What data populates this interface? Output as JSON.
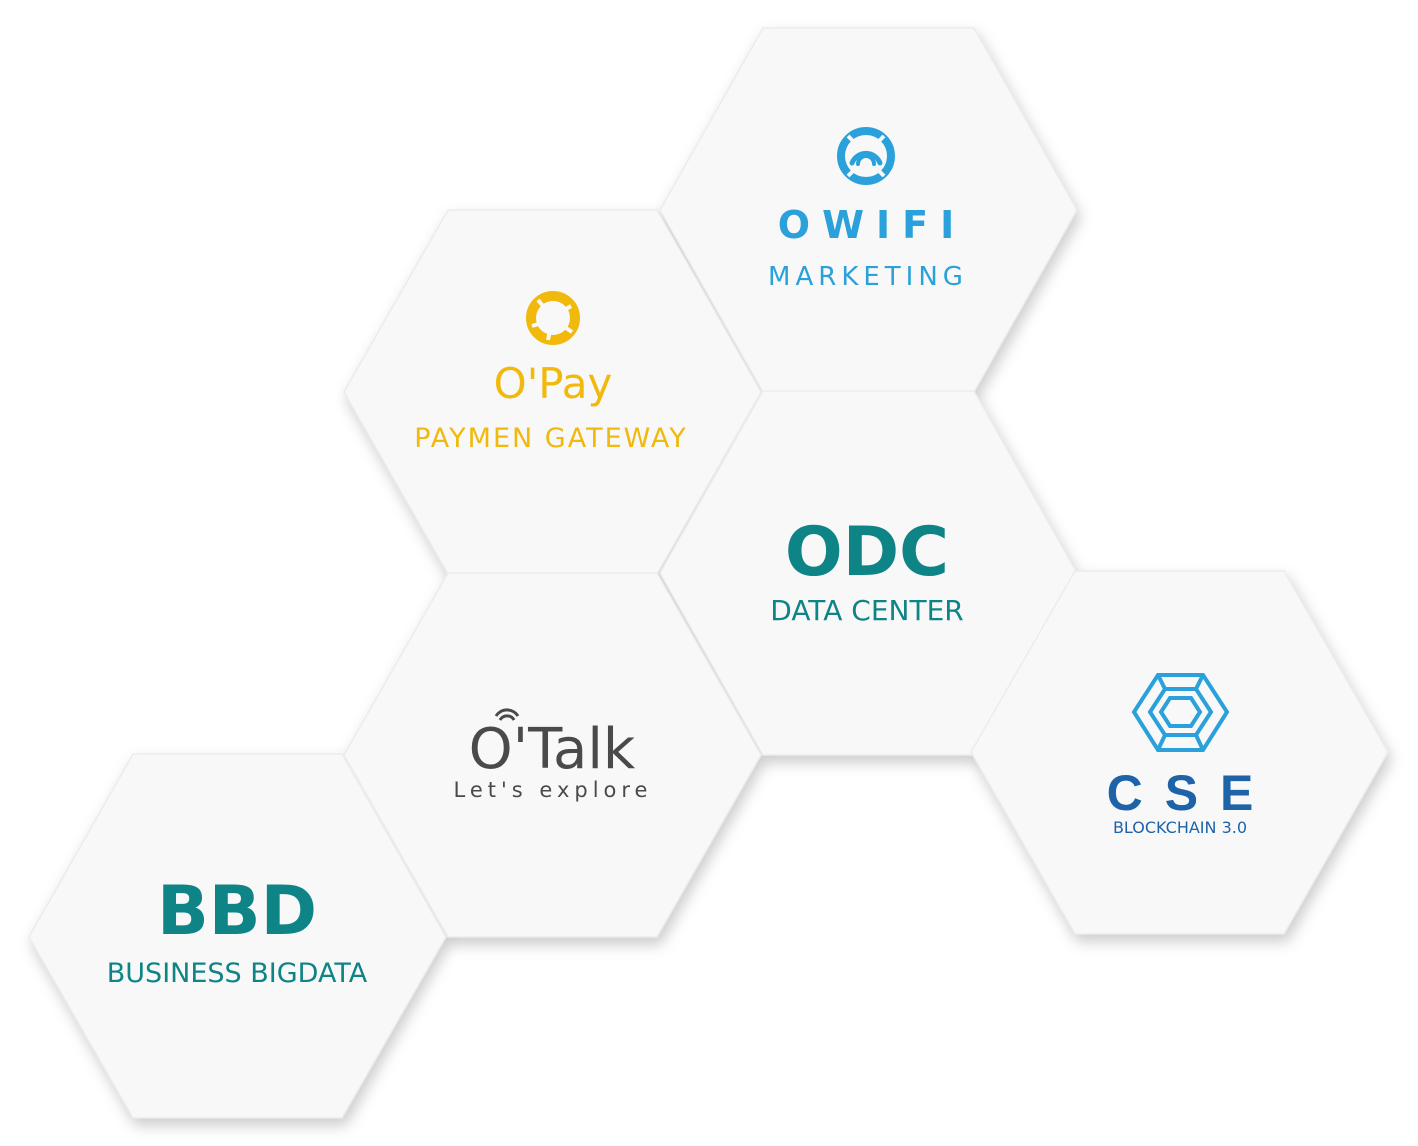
{
  "products": {
    "owifi": {
      "name": "OWIFI",
      "subtitle": "MARKETING",
      "color": "#2aa1da",
      "icon": "wifi-ring-icon"
    },
    "opay": {
      "name": "O'Pay",
      "subtitle": "PAYMEN GATEWAY",
      "color": "#f0b90b",
      "icon": "aperture-ring-icon"
    },
    "odc": {
      "name": "ODC",
      "subtitle": "DATA CENTER",
      "color": "#0f8487"
    },
    "otalk": {
      "name": "O'Talk",
      "subtitle": "Let's explore",
      "color": "#4a4a4a",
      "icon": "signal-icon"
    },
    "cse": {
      "name": "CSE",
      "subtitle": "BLOCKCHAIN 3.0",
      "color": "#1e63a8",
      "icon": "blockchain-hexagon-icon"
    },
    "bbd": {
      "name": "BBD",
      "subtitle": "BUSINESS BIGDATA",
      "color": "#0f8487"
    }
  },
  "colors": {
    "hex_fill": "#f8f8f8",
    "background": "#ffffff"
  }
}
